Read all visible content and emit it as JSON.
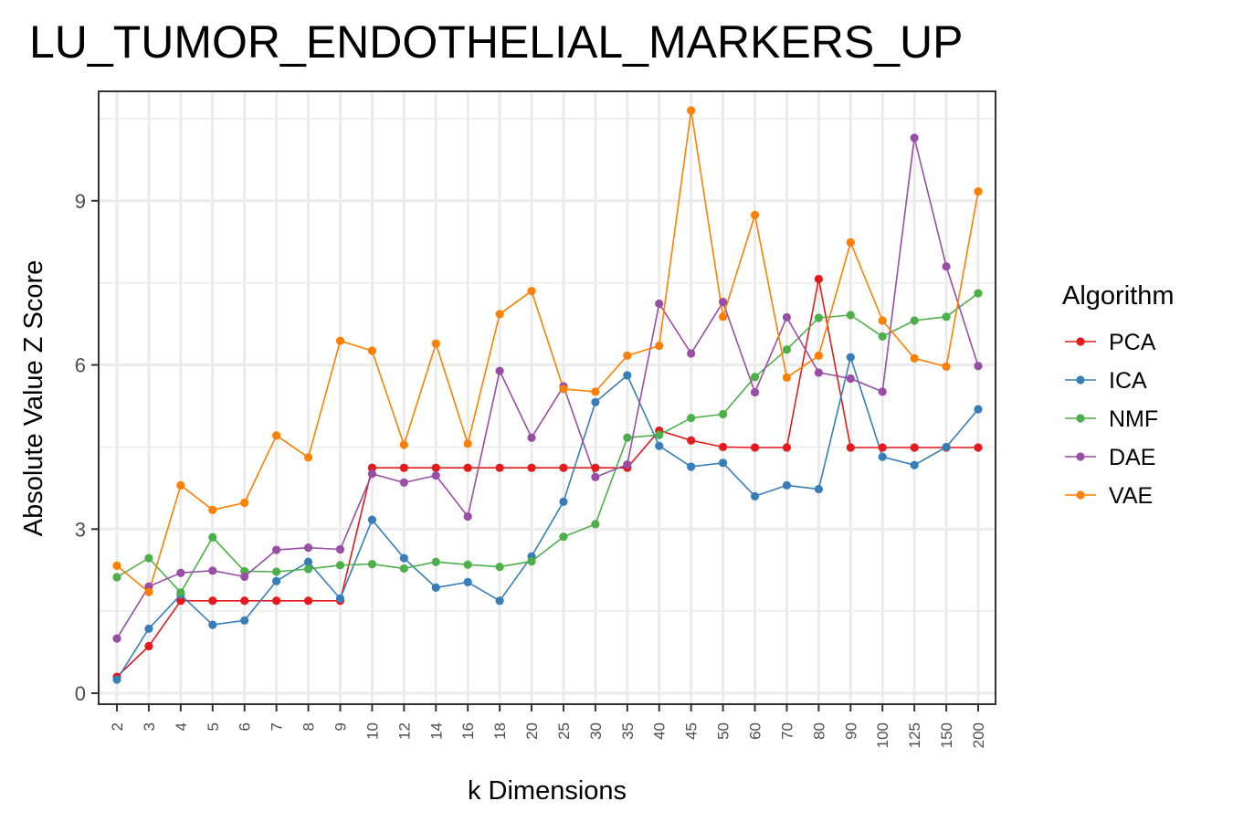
{
  "chart_data": {
    "type": "line",
    "title": "LU_TUMOR_ENDOTHELIAL_MARKERS_UP",
    "xlabel": "k Dimensions",
    "ylabel": "Absolute Value Z Score",
    "categories": [
      "2",
      "3",
      "4",
      "5",
      "6",
      "7",
      "8",
      "9",
      "10",
      "12",
      "14",
      "16",
      "18",
      "20",
      "25",
      "30",
      "35",
      "40",
      "45",
      "50",
      "60",
      "70",
      "80",
      "90",
      "100",
      "125",
      "150",
      "200"
    ],
    "y_ticks": [
      0,
      3,
      6,
      9
    ],
    "y_tick_labels": [
      "0",
      "3",
      "6",
      "9"
    ],
    "ylim": [
      -0.2,
      11.0
    ],
    "grid": true,
    "legend": {
      "title": "Algorithm",
      "position": "right"
    },
    "series": [
      {
        "name": "PCA",
        "color": "#e41a1c",
        "values": [
          0.3,
          0.86,
          1.69,
          1.69,
          1.69,
          1.69,
          1.69,
          1.69,
          4.12,
          4.12,
          4.12,
          4.12,
          4.12,
          4.12,
          4.12,
          4.12,
          4.12,
          4.8,
          4.62,
          4.5,
          4.49,
          4.49,
          7.57,
          4.49,
          4.49,
          4.49,
          4.49,
          4.49
        ]
      },
      {
        "name": "ICA",
        "color": "#377eb8",
        "values": [
          0.25,
          1.18,
          1.8,
          1.25,
          1.33,
          2.05,
          2.4,
          1.73,
          3.17,
          2.47,
          1.93,
          2.03,
          1.69,
          2.5,
          3.5,
          5.32,
          5.81,
          4.52,
          4.14,
          4.21,
          3.6,
          3.8,
          3.73,
          6.14,
          4.32,
          4.17,
          4.5,
          5.19
        ]
      },
      {
        "name": "NMF",
        "color": "#4daf4a",
        "values": [
          2.12,
          2.47,
          1.84,
          2.85,
          2.23,
          2.22,
          2.27,
          2.34,
          2.36,
          2.28,
          2.4,
          2.35,
          2.31,
          2.41,
          2.86,
          3.09,
          4.67,
          4.72,
          5.03,
          5.1,
          5.78,
          6.28,
          6.86,
          6.91,
          6.52,
          6.81,
          6.88,
          7.31
        ]
      },
      {
        "name": "DAE",
        "color": "#984ea3",
        "values": [
          1.0,
          1.95,
          2.2,
          2.24,
          2.13,
          2.62,
          2.66,
          2.63,
          4.01,
          3.85,
          3.98,
          3.23,
          5.89,
          4.67,
          5.61,
          3.95,
          4.18,
          7.12,
          6.21,
          7.15,
          5.5,
          6.87,
          5.86,
          5.75,
          5.51,
          10.15,
          7.8,
          5.98
        ]
      },
      {
        "name": "VAE",
        "color": "#ff7f00",
        "values": [
          2.33,
          1.85,
          3.8,
          3.35,
          3.48,
          4.71,
          4.31,
          6.44,
          6.26,
          4.54,
          6.39,
          4.56,
          6.93,
          7.35,
          5.56,
          5.51,
          6.17,
          6.35,
          10.65,
          6.88,
          8.74,
          5.77,
          6.17,
          8.24,
          6.81,
          6.12,
          5.97,
          9.17
        ]
      }
    ]
  }
}
